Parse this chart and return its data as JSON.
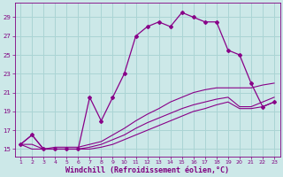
{
  "hours": [
    1,
    2,
    3,
    4,
    5,
    6,
    7,
    8,
    9,
    10,
    11,
    12,
    13,
    14,
    15,
    16,
    17,
    18,
    19,
    20,
    21,
    22,
    23
  ],
  "windchill": [
    15.5,
    16.5,
    15.0,
    15.0,
    15.0,
    15.0,
    20.5,
    18.0,
    20.5,
    23.0,
    27.0,
    28.0,
    28.5,
    28.0,
    29.5,
    29.0,
    28.5,
    28.5,
    25.5,
    25.0,
    22.0,
    19.5,
    20.0
  ],
  "temp": [
    15.5,
    16.5,
    15.0,
    15.2,
    15.2,
    15.2,
    15.5,
    15.8,
    16.5,
    17.2,
    18.0,
    18.7,
    19.3,
    20.0,
    20.5,
    21.0,
    21.3,
    21.5,
    21.5,
    21.5,
    21.5,
    21.8,
    22.0
  ],
  "feels1": [
    15.5,
    15.5,
    15.0,
    15.0,
    15.0,
    15.0,
    15.2,
    15.5,
    16.0,
    16.5,
    17.2,
    17.8,
    18.3,
    18.8,
    19.3,
    19.7,
    20.0,
    20.3,
    20.5,
    19.5,
    19.5,
    20.0,
    20.5
  ],
  "feels2": [
    15.5,
    15.0,
    15.0,
    15.0,
    15.0,
    15.0,
    15.0,
    15.2,
    15.5,
    16.0,
    16.5,
    17.0,
    17.5,
    18.0,
    18.5,
    19.0,
    19.3,
    19.7,
    20.0,
    19.3,
    19.3,
    19.5,
    20.0
  ],
  "line_color": "#880088",
  "bg_color": "#cce8e8",
  "grid_color": "#aad4d4",
  "xlabel": "Windchill (Refroidissement éolien,°C)",
  "xlabel_color": "#800080",
  "tick_color": "#800080",
  "yticks": [
    15,
    17,
    19,
    21,
    23,
    25,
    27,
    29
  ],
  "xticks": [
    1,
    2,
    3,
    4,
    5,
    6,
    7,
    8,
    9,
    10,
    11,
    12,
    13,
    14,
    15,
    16,
    17,
    18,
    19,
    20,
    21,
    22,
    23
  ],
  "ylim": [
    14.2,
    30.5
  ],
  "xlim": [
    0.5,
    23.5
  ]
}
